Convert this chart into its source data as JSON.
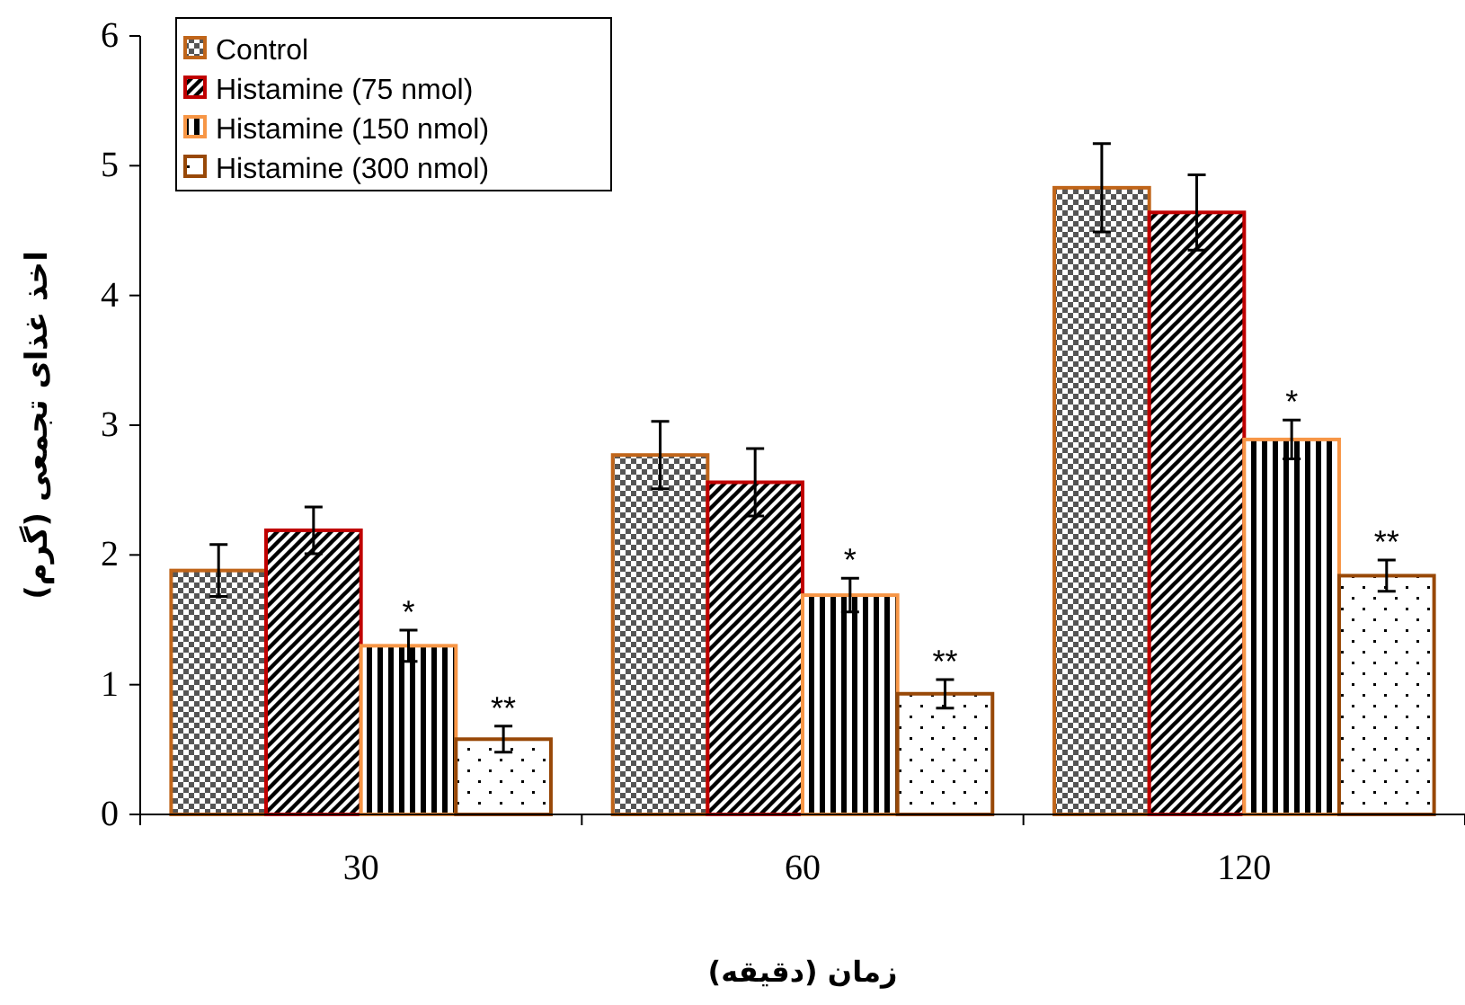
{
  "chart_data": {
    "type": "bar",
    "xlabel": "زمان (دقیقه)",
    "ylabel": "اخذ غذای تجمعی (گرم)",
    "categories": [
      "30",
      "60",
      "120"
    ],
    "series": [
      {
        "name": "Control",
        "color": "#c0651a",
        "values": [
          1.88,
          2.77,
          4.83
        ],
        "errors": [
          0.2,
          0.26,
          0.34
        ]
      },
      {
        "name": "Histamine (75 nmol)",
        "color": "#c00000",
        "values": [
          2.19,
          2.56,
          4.64
        ],
        "errors": [
          0.18,
          0.26,
          0.29
        ]
      },
      {
        "name": "Histamine (150 nmol)",
        "color": "#f79646",
        "values": [
          1.3,
          1.69,
          2.89
        ],
        "errors": [
          0.12,
          0.13,
          0.15
        ]
      },
      {
        "name": "Histamine (300 nmol)",
        "color": "#984807",
        "values": [
          0.58,
          0.93,
          1.84
        ],
        "errors": [
          0.1,
          0.11,
          0.12
        ]
      }
    ],
    "ylim": [
      0,
      6
    ],
    "yticks": [
      0,
      1,
      2,
      3,
      4,
      5,
      6
    ],
    "grid": false,
    "legend": "top left",
    "annotations": [
      "*",
      "**",
      "*",
      "**",
      "*",
      "**"
    ]
  }
}
